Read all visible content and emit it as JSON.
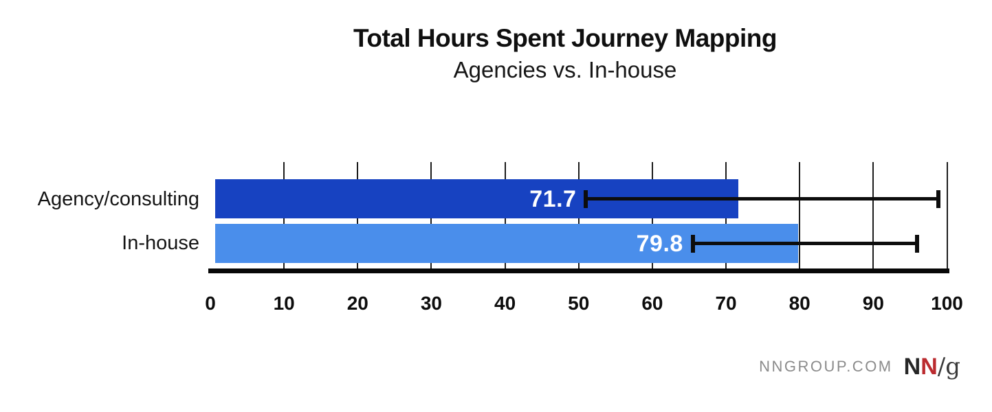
{
  "header": {
    "title": "Total Hours Spent Journey Mapping",
    "subtitle": "Agencies vs. In-house"
  },
  "chart_data": {
    "type": "bar",
    "orientation": "horizontal",
    "title": "Total Hours Spent Journey Mapping",
    "subtitle": "Agencies vs. In-house",
    "categories": [
      "Agency/consulting",
      "In-house"
    ],
    "values": [
      71.7,
      79.8
    ],
    "value_labels": [
      "71.7",
      "79.8"
    ],
    "error_low": [
      51.0,
      65.5
    ],
    "error_high": [
      98.8,
      95.9
    ],
    "x_ticks": [
      0,
      10,
      20,
      30,
      40,
      50,
      60,
      70,
      80,
      90,
      100
    ],
    "xlim": [
      0,
      100
    ],
    "grid": true,
    "legend_position": "none",
    "bar_colors": [
      "#1742c1",
      "#4a8eeb"
    ],
    "axis_color": "#070707",
    "grid_color": "#1c1c1c",
    "error_bar_color": "#0d0d0d",
    "value_label_color": "#ffffff"
  },
  "footer": {
    "site": "NNGROUP.COM",
    "logo": {
      "n1": "N",
      "n2": "N",
      "slashg": "/g"
    },
    "logo_red": "#bb2b2f"
  }
}
